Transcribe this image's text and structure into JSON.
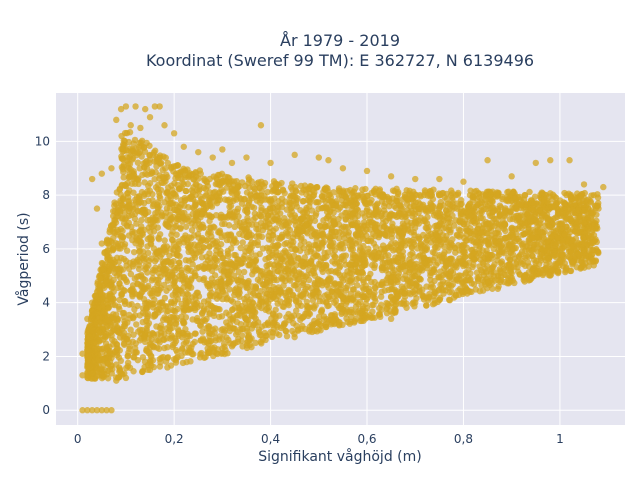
{
  "chart_data": {
    "type": "scatter",
    "title_line1": "År 1979 - 2019",
    "title_line2": "Koordinat (Sweref 99 TM): E 362727, N 6139496",
    "xlabel": "Signifikant våghöjd (m)",
    "ylabel": "Vågperiod (s)",
    "xlim": [
      -0.045,
      1.135
    ],
    "ylim": [
      -0.55,
      11.8
    ],
    "xticks": [
      0,
      0.2,
      0.4,
      0.6,
      0.8,
      1
    ],
    "xtick_labels": [
      "0",
      "0,2",
      "0,4",
      "0,6",
      "0,8",
      "1"
    ],
    "yticks": [
      0,
      2,
      4,
      6,
      8,
      10
    ],
    "ytick_labels": [
      "0",
      "2",
      "4",
      "6",
      "8",
      "10"
    ],
    "grid": true,
    "legend": "none",
    "plot_background": "#e5e5f0",
    "marker_color": "#d4a520",
    "marker_opacity": 0.75,
    "series": [
      {
        "points": [
          [
            0.01,
            0
          ],
          [
            0.02,
            0
          ],
          [
            0.03,
            0
          ],
          [
            0.04,
            0
          ],
          [
            0.05,
            0
          ],
          [
            0.06,
            0
          ],
          [
            0.07,
            0
          ],
          [
            0.01,
            1.3
          ],
          [
            0.01,
            2.1
          ],
          [
            0.02,
            1.6
          ],
          [
            0.02,
            3.4
          ],
          [
            0.03,
            4.0
          ],
          [
            0.03,
            8.6
          ],
          [
            0.04,
            1.5
          ],
          [
            0.04,
            7.5
          ],
          [
            0.05,
            6.2
          ],
          [
            0.05,
            8.8
          ],
          [
            0.06,
            4.8
          ],
          [
            0.07,
            9.0
          ],
          [
            0.08,
            10.8
          ],
          [
            0.09,
            11.2
          ],
          [
            0.1,
            11.3
          ],
          [
            0.11,
            10.6
          ],
          [
            0.12,
            11.3
          ],
          [
            0.13,
            10.5
          ],
          [
            0.14,
            11.2
          ],
          [
            0.15,
            10.9
          ],
          [
            0.16,
            11.3
          ],
          [
            0.17,
            11.3
          ],
          [
            0.18,
            10.6
          ],
          [
            0.2,
            10.3
          ],
          [
            0.22,
            9.8
          ],
          [
            0.25,
            9.6
          ],
          [
            0.28,
            9.4
          ],
          [
            0.3,
            9.7
          ],
          [
            0.32,
            9.2
          ],
          [
            0.35,
            9.4
          ],
          [
            0.38,
            10.6
          ],
          [
            0.4,
            9.2
          ],
          [
            0.45,
            9.5
          ],
          [
            0.5,
            9.4
          ],
          [
            0.52,
            9.3
          ],
          [
            0.55,
            9.0
          ],
          [
            0.6,
            8.9
          ],
          [
            0.65,
            8.7
          ],
          [
            0.7,
            8.6
          ],
          [
            0.75,
            8.6
          ],
          [
            0.8,
            8.5
          ],
          [
            0.85,
            9.3
          ],
          [
            0.9,
            8.7
          ],
          [
            0.95,
            9.2
          ],
          [
            0.98,
            9.3
          ],
          [
            1.02,
            9.3
          ],
          [
            1.05,
            8.4
          ],
          [
            1.07,
            8.0
          ],
          [
            1.09,
            8.3
          ],
          [
            1.08,
            7.5
          ],
          [
            1.06,
            6.5
          ],
          [
            1.04,
            5.8
          ],
          [
            1.02,
            5.7
          ],
          [
            1.0,
            5.5
          ],
          [
            0.9,
            5.1
          ],
          [
            0.8,
            4.7
          ],
          [
            0.7,
            4.0
          ],
          [
            0.65,
            3.4
          ],
          [
            0.6,
            3.8
          ],
          [
            0.5,
            3.3
          ],
          [
            0.4,
            2.9
          ],
          [
            0.3,
            2.3
          ],
          [
            0.2,
            1.9
          ],
          [
            0.15,
            1.5
          ],
          [
            0.1,
            1.2
          ],
          [
            0.08,
            1.1
          ]
        ]
      }
    ]
  }
}
